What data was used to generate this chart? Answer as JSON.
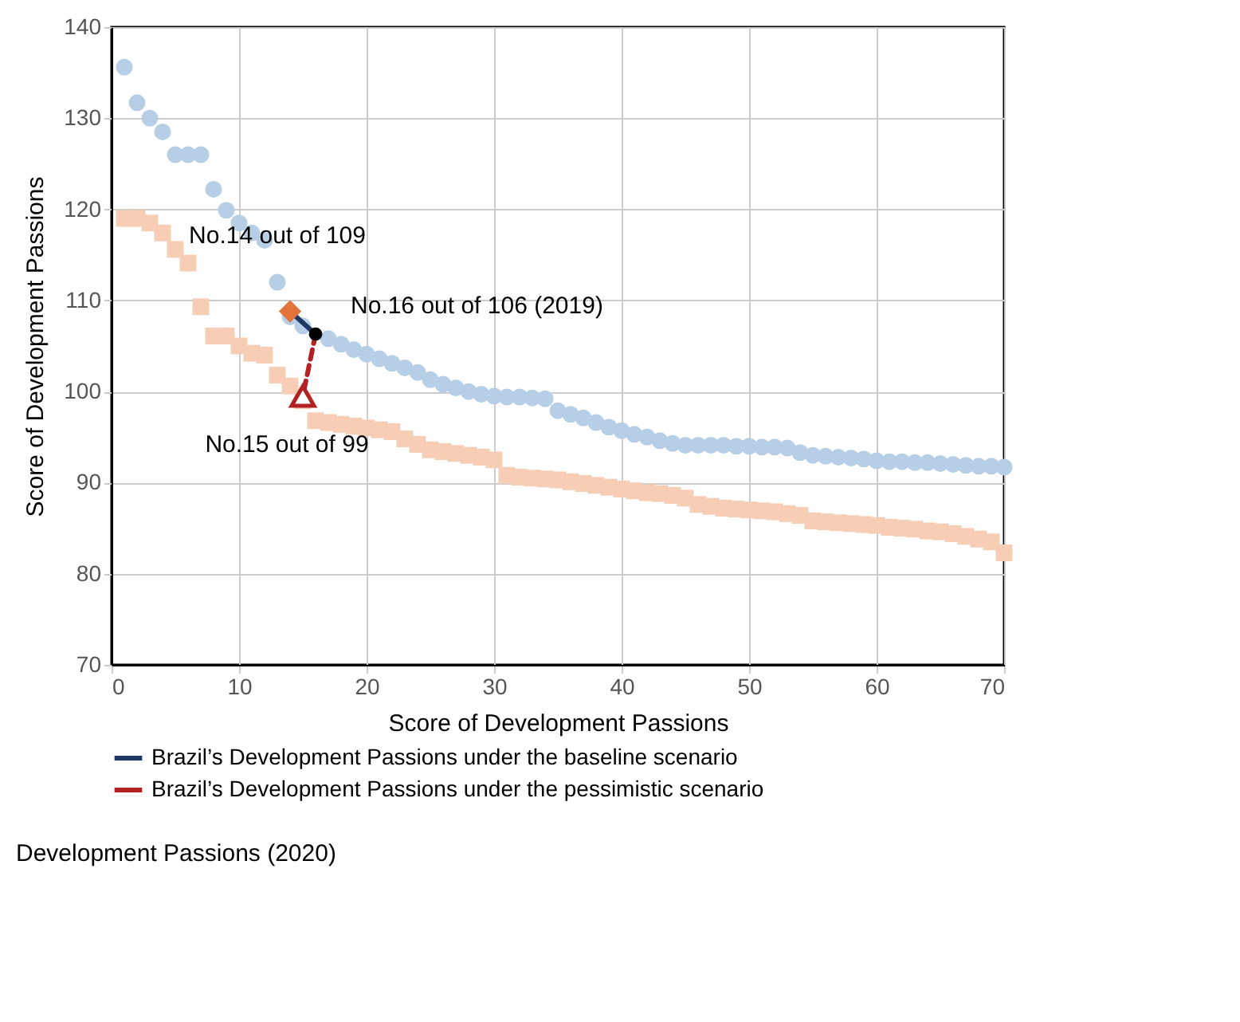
{
  "chart_data": {
    "type": "scatter",
    "xlabel": "Score of Development Passions",
    "ylabel": "Score of Development Passions",
    "xlim": [
      0,
      70
    ],
    "ylim": [
      70,
      140
    ],
    "xticks": [
      0,
      10,
      20,
      30,
      40,
      50,
      60,
      70
    ],
    "yticks": [
      70,
      80,
      90,
      100,
      110,
      120,
      130,
      140
    ],
    "grid": true,
    "legend": "bottom",
    "annotations": [
      {
        "text": "No.14 out of 109",
        "x": 14,
        "y": 108.8
      },
      {
        "text": "No.16 out of 106 (2019)",
        "x": 16,
        "y": 106.3
      },
      {
        "text": "No.15 out of 99",
        "x": 15,
        "y": 99.5
      },
      "Development Passions (2020)"
    ],
    "series": [
      {
        "color": "#b7cfe6",
        "marker": "circle",
        "x": [
          1,
          2,
          3,
          4,
          5,
          6,
          7,
          8,
          9,
          10,
          11,
          12,
          13,
          14,
          15,
          16,
          17,
          18,
          19,
          20,
          21,
          22,
          23,
          24,
          25,
          26,
          27,
          28,
          29,
          30,
          31,
          32,
          33,
          34,
          35,
          36,
          37,
          38,
          39,
          40,
          41,
          42,
          43,
          44,
          45,
          46,
          47,
          48,
          49,
          50,
          51,
          52,
          53,
          54,
          55,
          56,
          57,
          58,
          59,
          60,
          61,
          62,
          63,
          64,
          65,
          66,
          67,
          68,
          69,
          70
        ],
        "values": [
          135.6,
          131.7,
          130,
          128.5,
          126,
          126,
          126,
          122.2,
          119.9,
          118.5,
          117.4,
          116.6,
          112,
          108.2,
          107.2,
          null,
          105.8,
          105.2,
          104.6,
          104.1,
          103.6,
          103.1,
          102.6,
          102.1,
          101.3,
          100.8,
          100.4,
          100,
          99.7,
          99.5,
          99.4,
          99.4,
          99.3,
          99.2,
          97.9,
          97.5,
          97.1,
          96.6,
          96.1,
          95.7,
          95.3,
          95,
          94.6,
          94.3,
          94.1,
          94.1,
          94.1,
          94.1,
          94,
          94,
          93.9,
          93.9,
          93.8,
          93.3,
          93,
          92.9,
          92.8,
          92.7,
          92.6,
          92.4,
          92.3,
          92.3,
          92.2,
          92.2,
          92.1,
          92,
          91.9,
          91.8,
          91.8,
          91.7
        ]
      },
      {
        "color": "#f8cdb6",
        "marker": "square",
        "x": [
          1,
          2,
          3,
          4,
          5,
          6,
          7,
          8,
          9,
          10,
          11,
          12,
          13,
          14,
          15,
          16,
          17,
          18,
          19,
          20,
          21,
          22,
          23,
          24,
          25,
          26,
          27,
          28,
          29,
          30,
          31,
          32,
          33,
          34,
          35,
          36,
          37,
          38,
          39,
          40,
          41,
          42,
          43,
          44,
          45,
          46,
          47,
          48,
          49,
          50,
          51,
          52,
          53,
          54,
          55,
          56,
          57,
          58,
          59,
          60,
          61,
          62,
          63,
          64,
          65,
          66,
          67,
          68,
          69,
          70
        ],
        "values": [
          119,
          119,
          118.5,
          117.4,
          115.6,
          114.1,
          109.3,
          106.1,
          106.1,
          105,
          104.2,
          104,
          101.8,
          100.6,
          99,
          96.8,
          96.6,
          96.4,
          96.2,
          96,
          95.8,
          95.6,
          94.8,
          94.2,
          93.6,
          93.4,
          93.2,
          93,
          92.8,
          92.5,
          90.8,
          90.6,
          90.5,
          90.4,
          90.3,
          90.1,
          89.9,
          89.7,
          89.5,
          89.3,
          89.1,
          88.9,
          88.8,
          88.6,
          88.3,
          87.6,
          87.4,
          87.2,
          87.1,
          87,
          86.9,
          86.8,
          86.6,
          86.4,
          85.8,
          85.7,
          85.6,
          85.5,
          85.4,
          85.3,
          85.1,
          85,
          84.9,
          84.7,
          84.6,
          84.4,
          84.1,
          83.8,
          83.5,
          82.3
        ]
      },
      {
        "type": "line",
        "name": "Brazil’s Development Passions under the baseline scenario",
        "color": "#1f3864",
        "colors": [
          "#1f3864",
          "#e2733a"
        ],
        "marker": "diamond",
        "line_style": "solid",
        "x": [
          16,
          14
        ],
        "values": [
          106.3,
          108.8
        ]
      },
      {
        "type": "line",
        "name": "Brazil’s Development Passions under the pessimistic scenario",
        "color": "#b22222",
        "colors": [
          "#b22222",
          "#b22222"
        ],
        "marker": "triangle",
        "line_style": "dashed",
        "x": [
          16,
          15
        ],
        "values": [
          106.3,
          99.5
        ]
      },
      {
        "color": "#000000",
        "marker": "circle",
        "x": [
          16
        ],
        "values": [
          106.3
        ]
      }
    ]
  }
}
